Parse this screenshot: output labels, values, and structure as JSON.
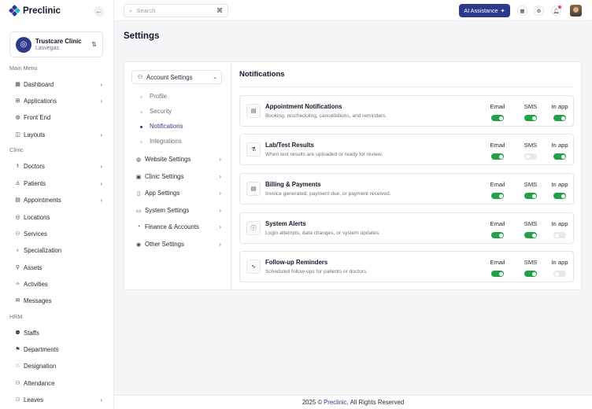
{
  "app": {
    "name": "Preclinic"
  },
  "clinic": {
    "name": "Trustcare Clinic",
    "location": "Lasvegas"
  },
  "sidebar": {
    "sections": [
      {
        "title": "Main Menu",
        "items": [
          {
            "label": "Dashboard",
            "icon": "grid-icon",
            "chevron": true
          },
          {
            "label": "Applications",
            "icon": "apps-icon",
            "chevron": true
          },
          {
            "label": "Front End",
            "icon": "globe-icon",
            "chevron": false
          },
          {
            "label": "Layouts",
            "icon": "layout-icon",
            "chevron": true
          }
        ]
      },
      {
        "title": "Clinic",
        "items": [
          {
            "label": "Doctors",
            "icon": "doctor-icon",
            "chevron": true
          },
          {
            "label": "Patients",
            "icon": "patient-icon",
            "chevron": true
          },
          {
            "label": "Appointments",
            "icon": "calendar-icon",
            "chevron": true
          },
          {
            "label": "Locations",
            "icon": "location-icon",
            "chevron": false
          },
          {
            "label": "Services",
            "icon": "service-icon",
            "chevron": false
          },
          {
            "label": "Specialization",
            "icon": "stethoscope-icon",
            "chevron": false
          },
          {
            "label": "Assets",
            "icon": "asset-icon",
            "chevron": false
          },
          {
            "label": "Activities",
            "icon": "activity-icon",
            "chevron": false
          },
          {
            "label": "Messages",
            "icon": "message-icon",
            "chevron": false
          }
        ]
      },
      {
        "title": "HRM",
        "items": [
          {
            "label": "Staffs",
            "icon": "staff-icon",
            "chevron": false
          },
          {
            "label": "Departments",
            "icon": "department-icon",
            "chevron": false
          },
          {
            "label": "Designation",
            "icon": "designation-icon",
            "chevron": false
          },
          {
            "label": "Attendance",
            "icon": "attendance-icon",
            "chevron": false
          },
          {
            "label": "Leaves",
            "icon": "leave-icon",
            "chevron": true
          }
        ]
      }
    ]
  },
  "topbar": {
    "search_placeholder": "Search",
    "ai_label": "AI Assistance"
  },
  "page": {
    "title": "Settings"
  },
  "settings_menu": {
    "account": {
      "label": "Account Settings",
      "sub": [
        {
          "label": "Profile",
          "active": false
        },
        {
          "label": "Security",
          "active": false
        },
        {
          "label": "Notifications",
          "active": true
        },
        {
          "label": "Integrations",
          "active": false
        }
      ]
    },
    "items": [
      {
        "label": "Website Settings",
        "icon": "globe-icon"
      },
      {
        "label": "Clinic Settings",
        "icon": "clinic-icon"
      },
      {
        "label": "App Settings",
        "icon": "app-icon"
      },
      {
        "label": "System Settings",
        "icon": "system-icon"
      },
      {
        "label": "Finance & Accounts",
        "icon": "finance-icon"
      },
      {
        "label": "Other Settings",
        "icon": "other-icon"
      }
    ]
  },
  "notifications": {
    "title": "Notifications",
    "columns": [
      "Email",
      "SMS",
      "In app"
    ],
    "rows": [
      {
        "title": "Appointment Notifications",
        "desc": "Booking, rescheduling, cancellations, and reminders.",
        "icon": "calendar-check-icon",
        "toggles": [
          true,
          true,
          true
        ]
      },
      {
        "title": "Lab/Test Results",
        "desc": "When test results are uploaded or ready for review.",
        "icon": "lab-icon",
        "toggles": [
          true,
          false,
          true
        ]
      },
      {
        "title": "Billing & Payments",
        "desc": "Invoice generated, payment due, or payment received.",
        "icon": "invoice-icon",
        "toggles": [
          true,
          true,
          true
        ]
      },
      {
        "title": "System Alerts",
        "desc": "Login attempts, data changes, or system updates.",
        "icon": "alert-icon",
        "toggles": [
          true,
          true,
          false
        ]
      },
      {
        "title": "Follow-up Reminders",
        "desc": "Scheduled follow-ups for patients or doctors.",
        "icon": "pulse-icon",
        "toggles": [
          true,
          true,
          false
        ]
      }
    ]
  },
  "footer": {
    "prefix": "2025 ©",
    "brand": "Preclinic,",
    "suffix": "All Rights Reserved"
  }
}
